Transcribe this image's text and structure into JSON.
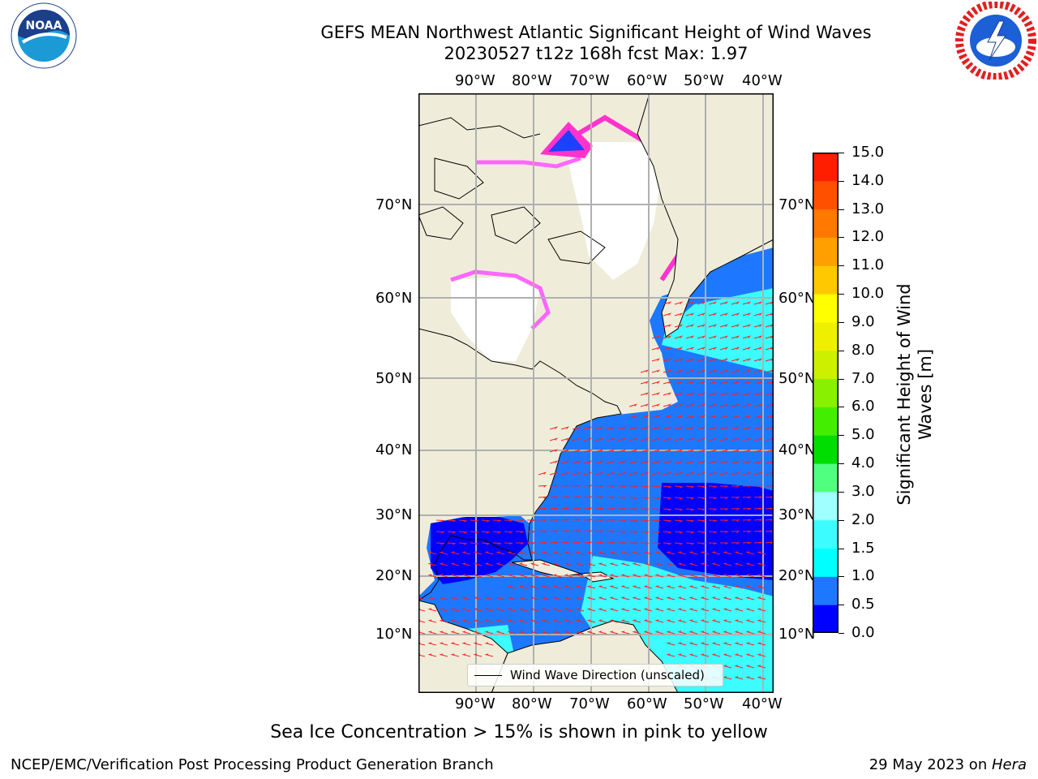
{
  "title": {
    "line1": "GEFS MEAN Northwest Atlantic Significant Height of Wind Waves",
    "line2": "20230527 t12z 168h fcst   Max: 1.97"
  },
  "logos": {
    "left": {
      "name": "noaa-logo",
      "text": "NOAA",
      "ring_text": "NATIONAL OCEANIC AND ATMOSPHERIC ADMINISTRATION · U.S. DEPARTMENT OF COMMERCE"
    },
    "right": {
      "name": "nws-logo",
      "ring_text": "NATIONAL WEATHER SERVICE"
    }
  },
  "map": {
    "projection_extent": {
      "lon": [
        -100,
        -38
      ],
      "lat": [
        2,
        82
      ]
    },
    "lon_labels": [
      "90°W",
      "80°W",
      "70°W",
      "60°W",
      "50°W",
      "40°W"
    ],
    "lat_labels": [
      "70°N",
      "60°N",
      "50°N",
      "40°N",
      "30°N",
      "20°N",
      "10°N"
    ],
    "land_color": "#efedda",
    "ocean_colors": {
      "0.0-0.5": "#0000ff",
      "0.5-1.0": "#1e78ff",
      "1.0-1.5": "#00ffff",
      "1.5-2.0": "#3cfcff"
    },
    "ice_colors": [
      "#ff33cc",
      "#ff66ff",
      "#ffb3d9",
      "#ffff33"
    ],
    "arrow_color": "#ff2020",
    "legend_label": "Wind Wave Direction (unscaled)"
  },
  "colorbar": {
    "title_line1": "Significant Height of Wind",
    "title_line2": "Waves [m]",
    "ticks": [
      "0.0",
      "0.5",
      "1.0",
      "1.5",
      "2.0",
      "3.0",
      "4.0",
      "5.0",
      "6.0",
      "7.0",
      "8.0",
      "9.0",
      "10.0",
      "11.0",
      "12.0",
      "13.0",
      "14.0",
      "15.0"
    ],
    "colors": [
      "#0000ff",
      "#1e78ff",
      "#00ffff",
      "#3cfcff",
      "#a0ffff",
      "#50ff80",
      "#00dd00",
      "#44ee00",
      "#88f000",
      "#ccf000",
      "#eef000",
      "#ffff00",
      "#ffc800",
      "#ffa000",
      "#ff7800",
      "#ff5000",
      "#ff1e00",
      "#ff0000"
    ]
  },
  "caption": "Sea Ice Concentration > 15% is shown in pink to yellow",
  "footer": {
    "credit": "NCEP/EMC/Verification Post Processing Product Generation Branch",
    "date": "29 May 2023 on ",
    "host": "Hera"
  }
}
